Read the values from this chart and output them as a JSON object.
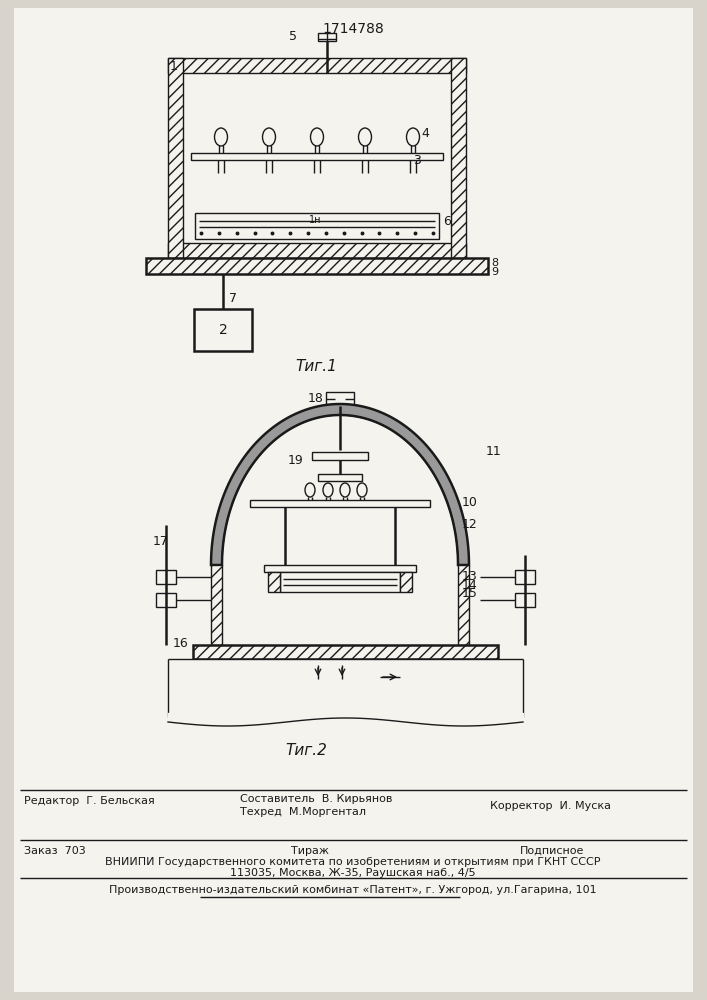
{
  "title_number": "1714788",
  "fig1_caption": "Τиг.1",
  "fig2_caption": "Τиг.2",
  "footer_editor": "Редактор  Г. Бельская",
  "footer_composer": "Составитель  В. Кирьянов",
  "footer_techred": "Техред  М.Моргентал",
  "footer_corrector": "Корректор  И. Муска",
  "footer_zakaz": "Заказ  703",
  "footer_tirazh": "Тираж",
  "footer_podpisnoe": "Подписное",
  "footer_vniipи": "ВНИИПИ Государственного комитета по изобретениям и открытиям при ГКНТ СССР",
  "footer_address": "113035, Москва, Ж-35, Раушская наб., 4/5",
  "footer_patent": "Производственно-издательский комбинат «Патент», г. Ужгород, ул.Гагарина, 101",
  "bg_color": "#d8d4cc",
  "line_color": "#1a1a1a",
  "white": "#f5f3ee"
}
